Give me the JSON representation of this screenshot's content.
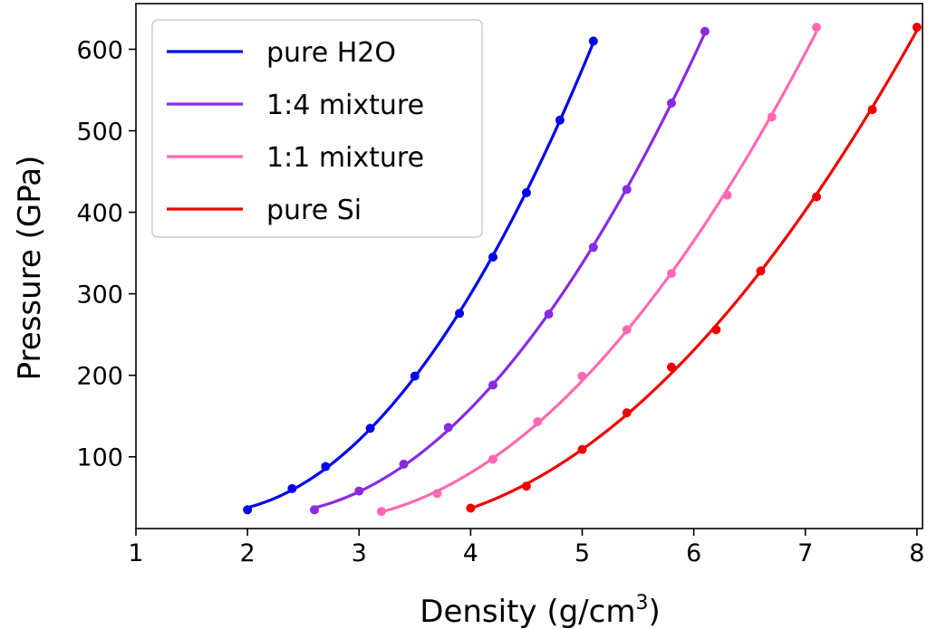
{
  "chart_data": {
    "type": "line",
    "title": "",
    "xlabel_main": "Density (g/cm",
    "xlabel_sup": "3",
    "xlabel_tail": ")",
    "ylabel": "Pressure (GPa)",
    "xlim": [
      1,
      8.05
    ],
    "ylim": [
      12,
      656
    ],
    "xticks": [
      1,
      2,
      3,
      4,
      5,
      6,
      7,
      8
    ],
    "yticks": [
      100,
      200,
      300,
      400,
      500,
      600
    ],
    "grid": false,
    "legend_position": "top-left",
    "series": [
      {
        "name": "pure H2O",
        "color": "#0000ee",
        "x": [
          2.0,
          2.4,
          2.7,
          3.1,
          3.5,
          3.9,
          4.2,
          4.5,
          4.8,
          5.1
        ],
        "y": [
          35,
          61,
          88,
          135,
          199,
          276,
          345,
          424,
          513,
          610
        ]
      },
      {
        "name": "1:4 mixture",
        "color": "#8a2be2",
        "x": [
          2.6,
          3.0,
          3.4,
          3.8,
          4.2,
          4.7,
          5.1,
          5.4,
          5.8,
          6.1
        ],
        "y": [
          35,
          58,
          91,
          136,
          188,
          275,
          357,
          428,
          534,
          622
        ]
      },
      {
        "name": "1:1 mixture",
        "color": "#ff69b4",
        "x": [
          3.2,
          3.7,
          4.2,
          4.6,
          5.0,
          5.4,
          5.8,
          6.3,
          6.7,
          7.1
        ],
        "y": [
          33,
          55,
          97,
          143,
          199,
          256,
          325,
          421,
          517,
          627
        ]
      },
      {
        "name": "pure Si",
        "color": "#ee0000",
        "x": [
          4.0,
          4.5,
          5.0,
          5.4,
          5.8,
          6.2,
          6.6,
          7.1,
          7.6,
          8.0
        ],
        "y": [
          37,
          64,
          109,
          154,
          210,
          256,
          328,
          419,
          526,
          627
        ]
      }
    ]
  }
}
